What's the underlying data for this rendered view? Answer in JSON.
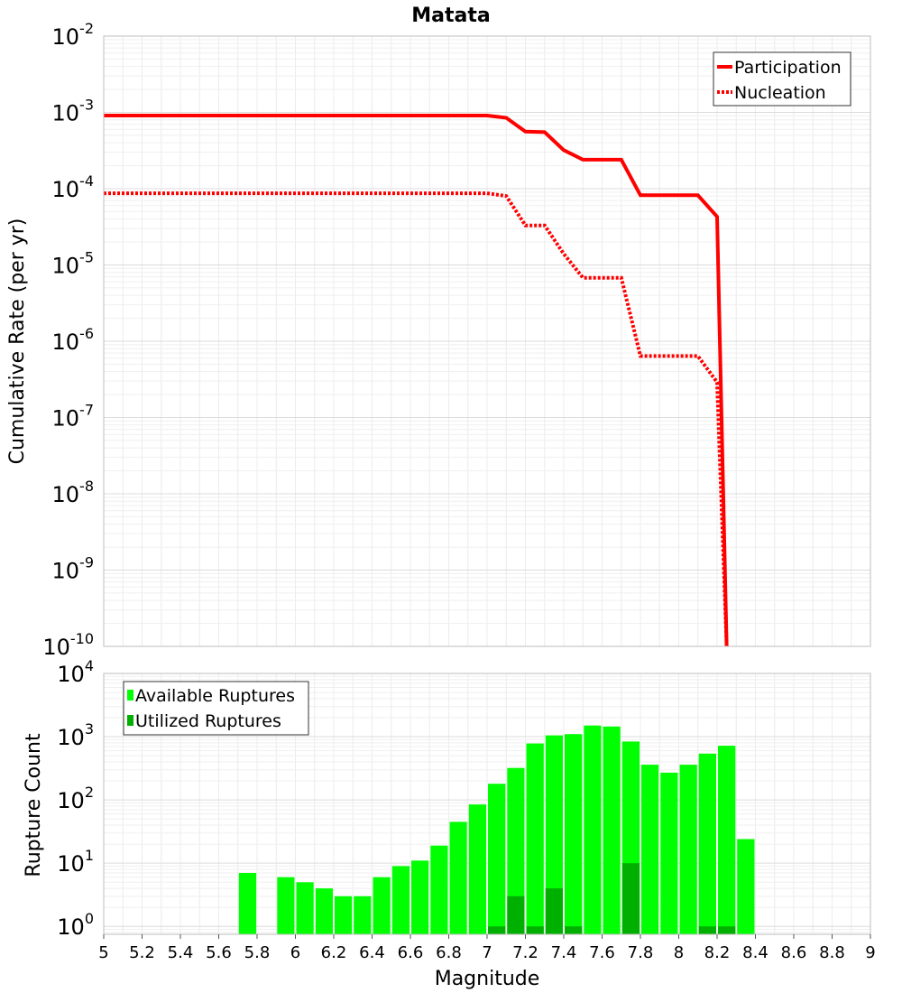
{
  "chart_data": [
    {
      "type": "line",
      "title": "Matata",
      "xlabel": "",
      "ylabel": "Cumulative Rate (per yr)",
      "xlim": [
        5,
        9
      ],
      "ylim": [
        1e-10,
        0.01
      ],
      "yscale": "log",
      "grid": true,
      "legend_position": "top-right",
      "series": [
        {
          "name": "Participation",
          "style": "solid",
          "color": "#ff0000",
          "x": [
            5.0,
            7.0,
            7.1,
            7.2,
            7.3,
            7.4,
            7.5,
            7.6,
            7.7,
            7.8,
            7.9,
            8.0,
            8.1,
            8.2,
            8.25
          ],
          "y": [
            0.00091,
            0.00091,
            0.00085,
            0.00056,
            0.00055,
            0.00032,
            0.00024,
            0.00024,
            0.00024,
            8.2e-05,
            8.2e-05,
            8.2e-05,
            8.2e-05,
            4.3e-05,
            1e-10
          ]
        },
        {
          "name": "Nucleation",
          "style": "dotted",
          "color": "#ff0000",
          "x": [
            5.0,
            7.0,
            7.1,
            7.2,
            7.3,
            7.4,
            7.5,
            7.6,
            7.7,
            7.8,
            7.9,
            8.0,
            8.1,
            8.2,
            8.25
          ],
          "y": [
            8.7e-05,
            8.7e-05,
            8e-05,
            3.3e-05,
            3.3e-05,
            1.4e-05,
            6.8e-06,
            6.8e-06,
            6.8e-06,
            6.4e-07,
            6.4e-07,
            6.4e-07,
            6.4e-07,
            2.9e-07,
            1e-10
          ]
        }
      ],
      "yticks": [
        {
          "base": "10",
          "exp": "-2"
        },
        {
          "base": "10",
          "exp": "-3"
        },
        {
          "base": "10",
          "exp": "-4"
        },
        {
          "base": "10",
          "exp": "-5"
        },
        {
          "base": "10",
          "exp": "-6"
        },
        {
          "base": "10",
          "exp": "-7"
        },
        {
          "base": "10",
          "exp": "-8"
        },
        {
          "base": "10",
          "exp": "-9"
        },
        {
          "base": "10",
          "exp": "-10"
        }
      ]
    },
    {
      "type": "bar",
      "title": "",
      "xlabel": "Magnitude",
      "ylabel": "Rupture Count",
      "xlim": [
        5,
        9
      ],
      "ylim": [
        0.75,
        10000
      ],
      "yscale": "log",
      "grid": true,
      "legend_position": "top-left",
      "bin_width": 0.1,
      "series": [
        {
          "name": "Available Ruptures",
          "color": "#00ff00",
          "x": [
            5.75,
            5.95,
            6.05,
            6.15,
            6.25,
            6.35,
            6.45,
            6.55,
            6.65,
            6.75,
            6.85,
            6.95,
            7.05,
            7.15,
            7.25,
            7.35,
            7.45,
            7.55,
            7.65,
            7.75,
            7.85,
            7.95,
            8.05,
            8.15,
            8.25,
            8.35
          ],
          "values": [
            7,
            6,
            5,
            4,
            3,
            3,
            6,
            9,
            11,
            19,
            45,
            85,
            180,
            320,
            780,
            1050,
            1100,
            1500,
            1450,
            840,
            360,
            270,
            360,
            540,
            720,
            24
          ]
        },
        {
          "name": "Utilized Ruptures",
          "color": "#00b000",
          "x": [
            7.05,
            7.15,
            7.25,
            7.35,
            7.45,
            7.75,
            8.15,
            8.25
          ],
          "values": [
            1,
            3,
            1,
            4,
            1,
            10,
            1,
            1
          ]
        }
      ],
      "xticks": [
        "5",
        "5.2",
        "5.4",
        "5.6",
        "5.8",
        "6",
        "6.2",
        "6.4",
        "6.6",
        "6.8",
        "7",
        "7.2",
        "7.4",
        "7.6",
        "7.8",
        "8",
        "8.2",
        "8.4",
        "8.6",
        "8.8",
        "9"
      ],
      "yticks": [
        {
          "base": "10",
          "exp": "4"
        },
        {
          "base": "10",
          "exp": "3"
        },
        {
          "base": "10",
          "exp": "2"
        },
        {
          "base": "10",
          "exp": "1"
        },
        {
          "base": "10",
          "exp": "0"
        }
      ]
    }
  ]
}
